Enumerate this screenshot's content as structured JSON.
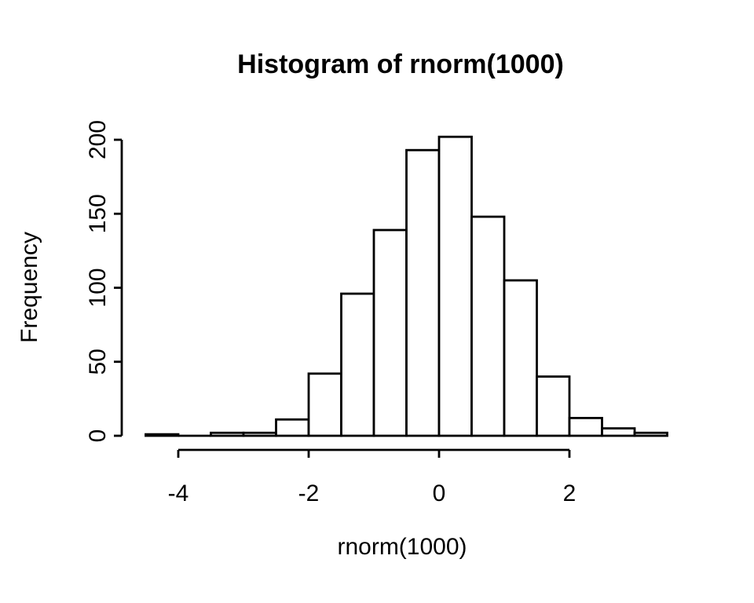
{
  "figure": {
    "title": "Histogram of rnorm(1000)",
    "xlabel": "rnorm(1000)",
    "ylabel": "Frequency"
  },
  "chart_data": {
    "type": "bar",
    "chart_kind": "histogram",
    "title": "Histogram of rnorm(1000)",
    "xlabel": "rnorm(1000)",
    "ylabel": "Frequency",
    "bin_start": -4.5,
    "bin_width": 0.5,
    "breaks": [
      -4.5,
      -4,
      -3.5,
      -3,
      -2.5,
      -2,
      -1.5,
      -1,
      -0.5,
      0,
      0.5,
      1,
      1.5,
      2,
      2.5,
      3,
      3.5
    ],
    "counts": [
      1,
      0,
      2,
      2,
      11,
      42,
      96,
      139,
      193,
      202,
      148,
      105,
      40,
      12,
      5,
      2
    ],
    "total_n": 1000,
    "x_ticks": [
      -4,
      -2,
      0,
      2
    ],
    "x_tick_labels": [
      "-4",
      "-2",
      "0",
      "2"
    ],
    "y_ticks": [
      0,
      50,
      100,
      150,
      200
    ],
    "y_tick_labels": [
      "0",
      "50",
      "100",
      "150",
      "200"
    ],
    "xlim": [
      -4.5,
      3.5
    ],
    "ylim": [
      0,
      200
    ],
    "grid": false,
    "legend_position": "none",
    "bar_fill": "#ffffff",
    "bar_stroke": "#000000",
    "axis_color": "#000000",
    "text_color": "#000000",
    "background": "#ffffff"
  }
}
